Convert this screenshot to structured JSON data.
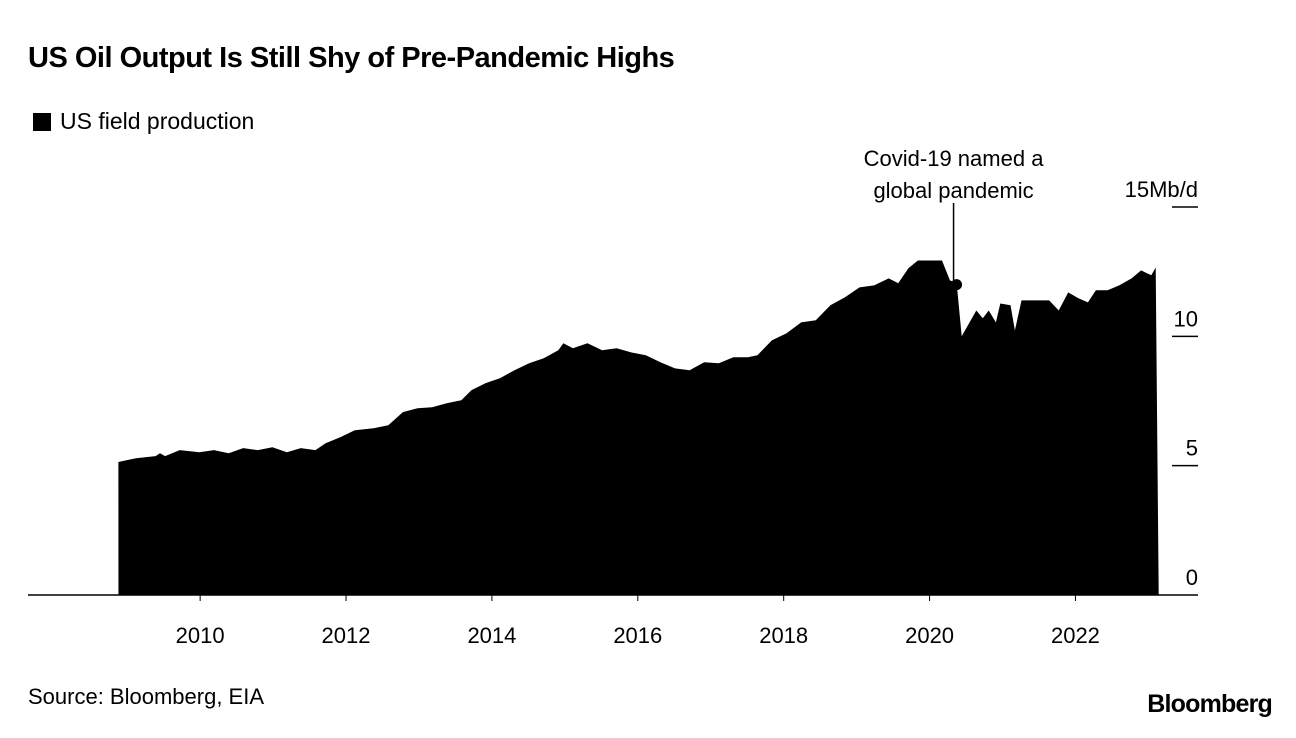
{
  "chart_data": {
    "type": "area",
    "title": "US Oil Output Is Still Shy of Pre-Pandemic Highs",
    "legend": [
      {
        "label": "US field production",
        "color": "#000000"
      }
    ],
    "legend_placement": "top-left",
    "xlabel": "",
    "ylabel": "",
    "y_unit_label": "15Mb/d",
    "ylim": [
      0,
      15
    ],
    "xlim": [
      2007.64,
      2023.68
    ],
    "y_ticks": [
      0,
      5,
      10,
      15
    ],
    "y_tick_labels": [
      "0",
      "5",
      "10",
      "15Mb/d"
    ],
    "x_ticks": [
      2010,
      2012,
      2014,
      2016,
      2018,
      2020,
      2022
    ],
    "x_tick_labels": [
      "2010",
      "2012",
      "2014",
      "2016",
      "2018",
      "2020",
      "2022"
    ],
    "grid": false,
    "annotation": {
      "lines": [
        "Covid-19 named a",
        "global pandemic"
      ],
      "x": 2020.37,
      "y": 12.0
    },
    "series": [
      {
        "name": "US field production",
        "x": [
          2008.88,
          2009.12,
          2009.39,
          2009.45,
          2009.52,
          2009.72,
          2009.99,
          2010.19,
          2010.39,
          2010.59,
          2010.79,
          2010.99,
          2011.19,
          2011.38,
          2011.58,
          2011.72,
          2011.92,
          2012.12,
          2012.38,
          2012.58,
          2012.78,
          2012.98,
          2013.18,
          2013.38,
          2013.58,
          2013.72,
          2013.91,
          2014.11,
          2014.31,
          2014.51,
          2014.71,
          2014.91,
          2014.98,
          2015.11,
          2015.31,
          2015.51,
          2015.71,
          2015.91,
          2016.11,
          2016.31,
          2016.51,
          2016.71,
          2016.91,
          2017.11,
          2017.31,
          2017.51,
          2017.64,
          2017.84,
          2018.04,
          2018.24,
          2018.44,
          2018.64,
          2018.84,
          2019.04,
          2019.24,
          2019.44,
          2019.57,
          2019.71,
          2019.84,
          2020.04,
          2020.17,
          2020.28,
          2020.37,
          2020.44,
          2020.64,
          2020.73,
          2020.81,
          2020.91,
          2020.97,
          2021.11,
          2021.17,
          2021.26,
          2021.64,
          2021.77,
          2021.9,
          2022.04,
          2022.17,
          2022.28,
          2022.44,
          2022.6,
          2022.77,
          2022.9,
          2023.04,
          2023.1
        ],
        "values": [
          5.14,
          5.29,
          5.37,
          5.48,
          5.37,
          5.6,
          5.52,
          5.6,
          5.48,
          5.68,
          5.6,
          5.71,
          5.52,
          5.68,
          5.6,
          5.87,
          6.1,
          6.37,
          6.45,
          6.56,
          7.07,
          7.22,
          7.26,
          7.41,
          7.53,
          7.92,
          8.19,
          8.38,
          8.69,
          8.96,
          9.15,
          9.46,
          9.73,
          9.54,
          9.73,
          9.46,
          9.54,
          9.38,
          9.27,
          9.0,
          8.76,
          8.69,
          9.0,
          8.96,
          9.19,
          9.19,
          9.27,
          9.85,
          10.12,
          10.54,
          10.62,
          11.2,
          11.51,
          11.89,
          11.97,
          12.24,
          12.05,
          12.63,
          12.93,
          12.93,
          12.93,
          12.16,
          12.08,
          10.0,
          11.0,
          10.7,
          11.0,
          10.54,
          11.27,
          11.2,
          10.23,
          11.39,
          11.39,
          11.0,
          11.7,
          11.47,
          11.31,
          11.78,
          11.78,
          11.97,
          12.24,
          12.55,
          12.36,
          12.66
        ]
      }
    ]
  },
  "source": "Source: Bloomberg, EIA",
  "brand": "Bloomberg"
}
